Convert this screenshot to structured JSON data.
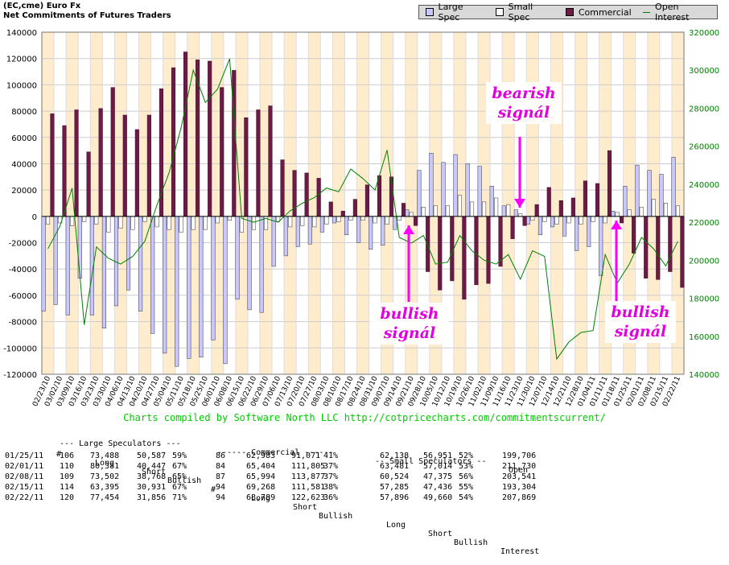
{
  "header": {
    "title_line1": "(EC,cme) Euro Fx",
    "title_line2": "Net Commitments of Futures Traders"
  },
  "legend": {
    "items": [
      {
        "label": "Large Spec",
        "color": "#c8c8ff"
      },
      {
        "label": "Small Spec",
        "color": "#ffffff"
      },
      {
        "label": "Commercial",
        "color": "#6b1b45"
      },
      {
        "label": "Open Interest",
        "color": "#008000"
      }
    ]
  },
  "chart_data": {
    "type": "bar",
    "categories": [
      "02/23/10",
      "03/02/10",
      "03/09/10",
      "03/16/10",
      "03/23/10",
      "03/30/10",
      "04/06/10",
      "04/13/10",
      "04/20/10",
      "04/27/10",
      "05/04/10",
      "05/11/10",
      "05/18/10",
      "05/25/10",
      "06/01/10",
      "06/08/10",
      "06/15/10",
      "06/22/10",
      "06/29/10",
      "07/06/10",
      "07/13/10",
      "07/20/10",
      "07/27/10",
      "08/03/10",
      "08/10/10",
      "08/17/10",
      "08/24/10",
      "08/31/10",
      "09/07/10",
      "09/14/10",
      "09/21/10",
      "09/28/10",
      "10/05/10",
      "10/12/10",
      "10/19/10",
      "10/26/10",
      "11/02/10",
      "11/09/10",
      "11/16/10",
      "11/23/10",
      "11/30/10",
      "12/07/10",
      "12/14/10",
      "12/21/10",
      "12/28/10",
      "01/04/11",
      "01/11/11",
      "01/18/11",
      "01/25/11",
      "02/01/11",
      "02/08/11",
      "02/15/11",
      "02/22/11"
    ],
    "series": [
      {
        "name": "Large Spec",
        "color": "#c8c8ff",
        "values": [
          -72000,
          -67000,
          -75000,
          -47000,
          -75000,
          -85000,
          -68000,
          -56000,
          -72000,
          -89000,
          -104000,
          -114000,
          -108000,
          -107000,
          -94000,
          -112000,
          -63000,
          -71000,
          -73000,
          -38000,
          -30000,
          -23000,
          -21000,
          -12000,
          -5000,
          -14000,
          -20000,
          -25000,
          -22000,
          -10000,
          5000,
          35000,
          48000,
          41000,
          47000,
          40000,
          38000,
          23000,
          8000,
          5000,
          -6000,
          -14000,
          -8000,
          -15000,
          -26000,
          -23000,
          -45000,
          4000,
          23000,
          39000,
          35000,
          32000,
          45000
        ]
      },
      {
        "name": "Small Spec",
        "color": "#ffffff",
        "values": [
          -6000,
          -5000,
          -7000,
          -4000,
          -6000,
          -12000,
          -9000,
          -10000,
          -4000,
          -8000,
          -10000,
          -12000,
          -10000,
          -10000,
          -5000,
          -3000,
          -12000,
          -10000,
          -10000,
          -4000,
          -8000,
          -7000,
          -8000,
          -6000,
          -4000,
          -3000,
          -3000,
          -5000,
          -6000,
          -3000,
          3000,
          7000,
          8000,
          8000,
          16000,
          11000,
          11000,
          14000,
          9000,
          2000,
          -3000,
          -4000,
          -6000,
          -5000,
          -6000,
          -4000,
          -5000,
          3000,
          5000,
          7000,
          13000,
          10000,
          8000
        ]
      },
      {
        "name": "Commercial",
        "color": "#6b1b45",
        "values": [
          78000,
          69000,
          81000,
          49000,
          82000,
          98000,
          77000,
          66000,
          77000,
          97000,
          113000,
          125000,
          119000,
          118000,
          98000,
          111000,
          75000,
          81000,
          84000,
          43000,
          35000,
          33000,
          29000,
          11000,
          4000,
          13000,
          24000,
          31000,
          30000,
          10000,
          -7000,
          -42000,
          -56000,
          -49000,
          -63000,
          -52000,
          -51000,
          -38000,
          -17000,
          -7000,
          9000,
          22000,
          12000,
          14000,
          27000,
          25000,
          50000,
          -5000,
          -28000,
          -47000,
          -48000,
          -42000,
          -54000
        ]
      },
      {
        "name": "Open Interest",
        "color": "#008000",
        "axis": "right",
        "values": [
          206000,
          218000,
          238000,
          166000,
          207000,
          201000,
          198000,
          202000,
          210000,
          229000,
          246000,
          270000,
          300000,
          283000,
          290000,
          306000,
          222000,
          220000,
          222000,
          220000,
          226000,
          230000,
          233000,
          238000,
          236000,
          248000,
          243000,
          237000,
          258000,
          212000,
          209000,
          213000,
          198000,
          199000,
          213000,
          205000,
          200000,
          198000,
          203000,
          190000,
          205000,
          202000,
          148000,
          157000,
          162000,
          163000,
          203000,
          188000,
          198000,
          212000,
          206000,
          197000,
          210000
        ]
      }
    ],
    "ylim": [
      -120000,
      140000
    ],
    "y2lim": [
      140000,
      320000
    ],
    "yticks": [
      140000,
      120000,
      100000,
      80000,
      60000,
      40000,
      20000,
      0,
      -20000,
      -40000,
      -60000,
      -80000,
      -100000,
      -120000
    ],
    "y2ticks": [
      320000,
      300000,
      280000,
      260000,
      240000,
      220000,
      200000,
      180000,
      160000,
      140000
    ],
    "grid": true,
    "legend_position": "top-right"
  },
  "annotations": {
    "bullish1": [
      "bullish",
      "signál"
    ],
    "bearish": [
      "bearish",
      "signál"
    ],
    "bullish2": [
      "bullish",
      "signál"
    ]
  },
  "credit": "Charts compiled by Software North LLC  http://cotpricecharts.com/commitmentscurrent/",
  "table": {
    "group_headers": [
      "--- Large Speculators ---",
      "------ Commercial ------",
      "-- Small Speculators --",
      "Open"
    ],
    "col_headers": [
      "#",
      "Long",
      "Short",
      "Bullish",
      "#",
      "Long",
      "Short",
      "Bullish",
      "Long",
      "Short",
      "Bullish",
      "Interest"
    ],
    "rows": [
      [
        "01/25/11",
        "106",
        "73,488",
        "50,587",
        "59%",
        "86",
        "62,983",
        "91,071",
        "41%",
        "62,138",
        "56,951",
        "52%",
        "199,706"
      ],
      [
        "02/01/11",
        "110",
        "80,381",
        "40,447",
        "67%",
        "84",
        "65,404",
        "111,805",
        "37%",
        "63,481",
        "57,014",
        "53%",
        "211,730"
      ],
      [
        "02/08/11",
        "109",
        "73,502",
        "38,768",
        "65%",
        "87",
        "65,994",
        "113,877",
        "37%",
        "60,524",
        "47,375",
        "56%",
        "203,541"
      ],
      [
        "02/15/11",
        "114",
        "63,395",
        "30,931",
        "67%",
        "94",
        "69,268",
        "111,581",
        "38%",
        "57,285",
        "47,436",
        "55%",
        "193,304"
      ],
      [
        "02/22/11",
        "120",
        "77,454",
        "31,856",
        "71%",
        "94",
        "68,789",
        "122,623",
        "36%",
        "57,896",
        "49,660",
        "54%",
        "207,869"
      ]
    ]
  }
}
